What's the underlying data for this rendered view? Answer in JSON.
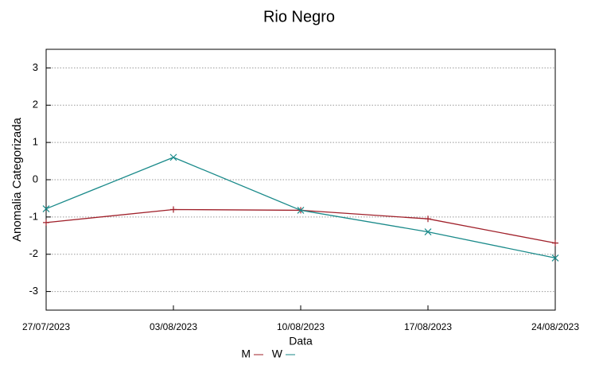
{
  "chart_data": {
    "type": "line",
    "title": "Rio Negro",
    "x_label": "Data",
    "y_label": "Anomalia Categorizada",
    "categories": [
      "27/07/2023",
      "03/08/2023",
      "10/08/2023",
      "17/08/2023",
      "24/08/2023"
    ],
    "series": [
      {
        "name": "M",
        "color": "#a0202a",
        "marker": "+",
        "values": [
          -1.15,
          -0.8,
          -0.82,
          -1.05,
          -1.7
        ]
      },
      {
        "name": "W",
        "color": "#1a8a8a",
        "marker": "x",
        "values": [
          -0.78,
          0.6,
          -0.82,
          -1.4,
          -2.1
        ]
      }
    ],
    "ylim": [
      -3.5,
      3.5
    ],
    "yticks": [
      -3,
      -2,
      -1,
      0,
      1,
      2,
      3
    ],
    "grid": true
  }
}
